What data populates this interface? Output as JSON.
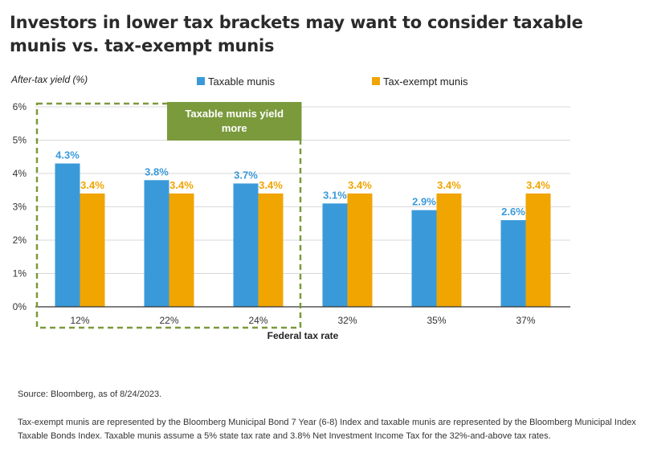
{
  "title": "Investors in lower tax brackets may want to consider taxable munis vs. tax-exempt munis",
  "chart_data": {
    "type": "bar",
    "ylabel": "After-tax yield (%)",
    "xlabel": "Federal tax rate",
    "categories": [
      "12%",
      "22%",
      "24%",
      "32%",
      "35%",
      "37%"
    ],
    "ylim": [
      0,
      6
    ],
    "yticks": [
      "0%",
      "1%",
      "2%",
      "3%",
      "4%",
      "5%",
      "6%"
    ],
    "grid": true,
    "legend_position": "top",
    "series": [
      {
        "name": "Taxable munis",
        "color": "#3a9ad9",
        "values": [
          4.3,
          3.8,
          3.7,
          3.1,
          2.9,
          2.6
        ],
        "labels": [
          "4.3%",
          "3.8%",
          "3.7%",
          "3.1%",
          "2.9%",
          "2.6%"
        ]
      },
      {
        "name": "Tax-exempt munis",
        "color": "#f0a500",
        "values": [
          3.4,
          3.4,
          3.4,
          3.4,
          3.4,
          3.4
        ],
        "labels": [
          "3.4%",
          "3.4%",
          "3.4%",
          "3.4%",
          "3.4%",
          "3.4%"
        ]
      }
    ],
    "annotation": {
      "text": "Taxable munis yield more",
      "color": "#7a9a3c",
      "spans_categories": [
        "12%",
        "22%",
        "24%"
      ]
    }
  },
  "source": "Source: Bloomberg, as of 8/24/2023.",
  "note": "Tax-exempt munis are represented by the Bloomberg Municipal Bond 7 Year (6-8) Index and taxable munis are represented by the Bloomberg Municipal Index Taxable Bonds Index. Taxable munis assume a 5% state tax rate and 3.8% Net Investment Income Tax for the 32%-and-above tax rates."
}
